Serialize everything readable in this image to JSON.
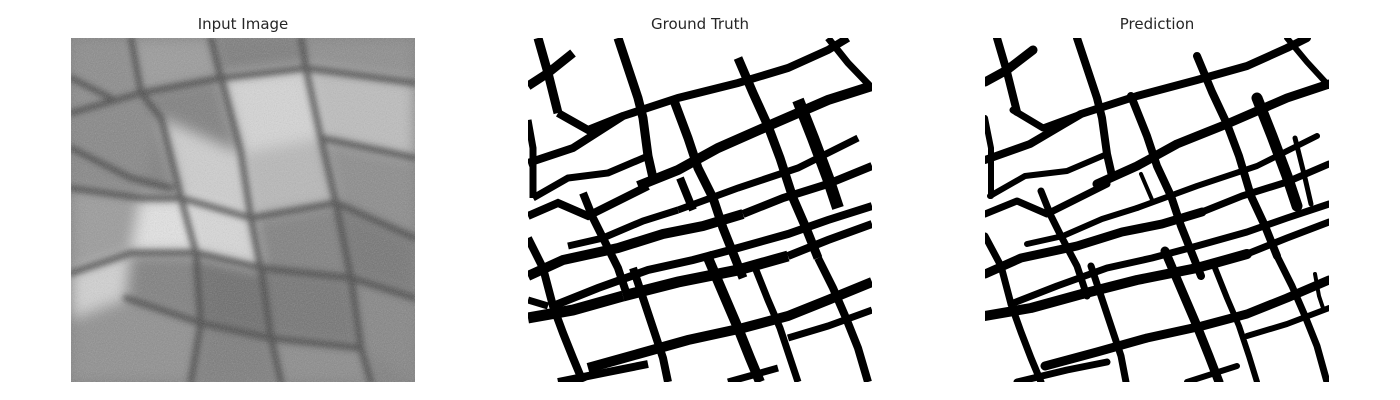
{
  "figure": {
    "panels": [
      {
        "title": "Input Image",
        "content": "grayscale aerial image of agricultural field parcels",
        "colormap": "gray"
      },
      {
        "title": "Ground Truth",
        "content": "binary field-boundary mask",
        "colors": {
          "background": "#ffffff",
          "boundary": "#000000"
        }
      },
      {
        "title": "Prediction",
        "content": "predicted binary field-boundary mask",
        "colors": {
          "background": "#ffffff",
          "boundary": "#000000"
        }
      }
    ]
  }
}
